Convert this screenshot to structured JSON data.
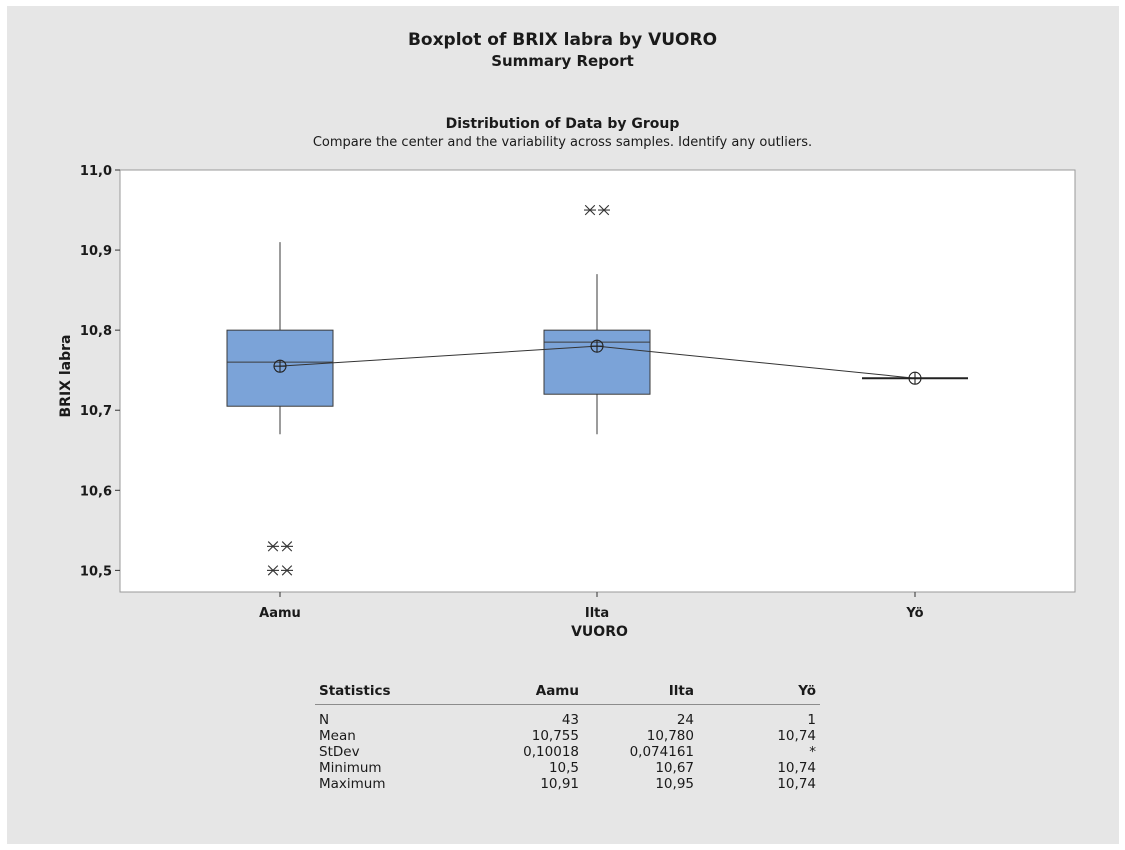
{
  "report": {
    "title": "Boxplot of BRIX labra by VUORO",
    "subtitle": "Summary Report",
    "section_title": "Distribution of Data by Group",
    "section_description": "Compare the center and the variability across samples. Identify any outliers."
  },
  "colors": {
    "box_fill": "#7ba3d8",
    "box_stroke": "#3a3a3a",
    "background": "#e6e6e6",
    "plot_background": "#ffffff"
  },
  "chart_data": {
    "type": "boxplot",
    "xlabel": "VUORO",
    "ylabel": "BRIX labra",
    "ylim": [
      10.473,
      11.0
    ],
    "yticks": [
      10.5,
      10.6,
      10.7,
      10.8,
      10.9,
      11.0
    ],
    "ytick_labels": [
      "10,5",
      "10,6",
      "10,7",
      "10,8",
      "10,9",
      "11,0"
    ],
    "categories": [
      "Aamu",
      "Ilta",
      "Yö"
    ],
    "groups": [
      {
        "name": "Aamu",
        "whisker_low": 10.67,
        "q1": 10.705,
        "median": 10.76,
        "q3": 10.8,
        "whisker_high": 10.91,
        "mean": 10.755,
        "outliers": [
          {
            "value": 10.53,
            "count": 2
          },
          {
            "value": 10.5,
            "count": 2
          }
        ]
      },
      {
        "name": "Ilta",
        "whisker_low": 10.67,
        "q1": 10.72,
        "median": 10.785,
        "q3": 10.8,
        "whisker_high": 10.87,
        "mean": 10.78,
        "outliers": [
          {
            "value": 10.95,
            "count": 2
          }
        ]
      },
      {
        "name": "Yö",
        "whisker_low": 10.74,
        "q1": 10.74,
        "median": 10.74,
        "q3": 10.74,
        "whisker_high": 10.74,
        "mean": 10.74,
        "outliers": []
      }
    ],
    "mean_connect_line": true,
    "grid": false
  },
  "stats_table": {
    "headers": [
      "Statistics",
      "Aamu",
      "Ilta",
      "Yö"
    ],
    "rows": [
      {
        "label": "N",
        "values": [
          "43",
          "24",
          "1"
        ]
      },
      {
        "label": "Mean",
        "values": [
          "10,755",
          "10,780",
          "10,74"
        ]
      },
      {
        "label": "StDev",
        "values": [
          "0,10018",
          "0,074161",
          "*"
        ]
      },
      {
        "label": "Minimum",
        "values": [
          "10,5",
          "10,67",
          "10,74"
        ]
      },
      {
        "label": "Maximum",
        "values": [
          "10,91",
          "10,95",
          "10,74"
        ]
      }
    ]
  }
}
